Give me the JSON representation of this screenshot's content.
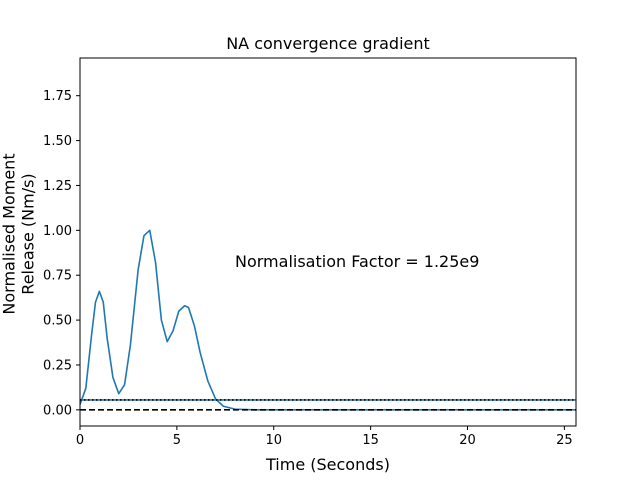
{
  "chart_data": {
    "type": "line",
    "title": "NA convergence gradient",
    "xlabel": "Time (Seconds)",
    "ylabel": "Normalised Moment Release (Nm/s)",
    "xlim": [
      0,
      25.6
    ],
    "ylim": [
      -0.09,
      1.96
    ],
    "xticks": [
      0,
      5,
      10,
      15,
      20,
      25
    ],
    "xtick_labels": [
      "0",
      "5",
      "10",
      "15",
      "20",
      "25"
    ],
    "yticks": [
      0.0,
      0.25,
      0.5,
      0.75,
      1.0,
      1.25,
      1.5,
      1.75
    ],
    "ytick_labels": [
      "0.00",
      "0.25",
      "0.50",
      "0.75",
      "1.00",
      "1.25",
      "1.50",
      "1.75"
    ],
    "grid": false,
    "annotation": {
      "text": "Normalisation Factor = 1.25e9",
      "x": 8.0,
      "y": 0.8
    },
    "series": [
      {
        "style": "solid",
        "color": "#1f77b4",
        "x": [
          0,
          0.3,
          0.6,
          0.8,
          1.0,
          1.2,
          1.4,
          1.7,
          2.0,
          2.3,
          2.6,
          3.0,
          3.3,
          3.6,
          3.9,
          4.2,
          4.5,
          4.8,
          5.1,
          5.4,
          5.6,
          5.9,
          6.2,
          6.6,
          7.0,
          7.4,
          8.0,
          9.0,
          10.0,
          12.0,
          15.0,
          20.0,
          25.6
        ],
        "y": [
          0.03,
          0.12,
          0.42,
          0.6,
          0.66,
          0.6,
          0.4,
          0.18,
          0.09,
          0.14,
          0.36,
          0.78,
          0.97,
          1.0,
          0.82,
          0.5,
          0.38,
          0.44,
          0.55,
          0.58,
          0.57,
          0.47,
          0.32,
          0.16,
          0.06,
          0.02,
          0.004,
          0.0,
          0.0,
          0.0,
          0.0,
          0.0,
          0.0
        ]
      },
      {
        "style": "solid",
        "color": "#1f77b4",
        "x": [
          0,
          25.6
        ],
        "y": [
          0.055,
          0.055
        ]
      },
      {
        "style": "dotted",
        "color": "#000000",
        "x": [
          0,
          25.6
        ],
        "y": [
          0.055,
          0.055
        ]
      },
      {
        "style": "dashed",
        "color": "#000000",
        "x": [
          0,
          25.6
        ],
        "y": [
          0.0,
          0.0
        ]
      }
    ]
  }
}
